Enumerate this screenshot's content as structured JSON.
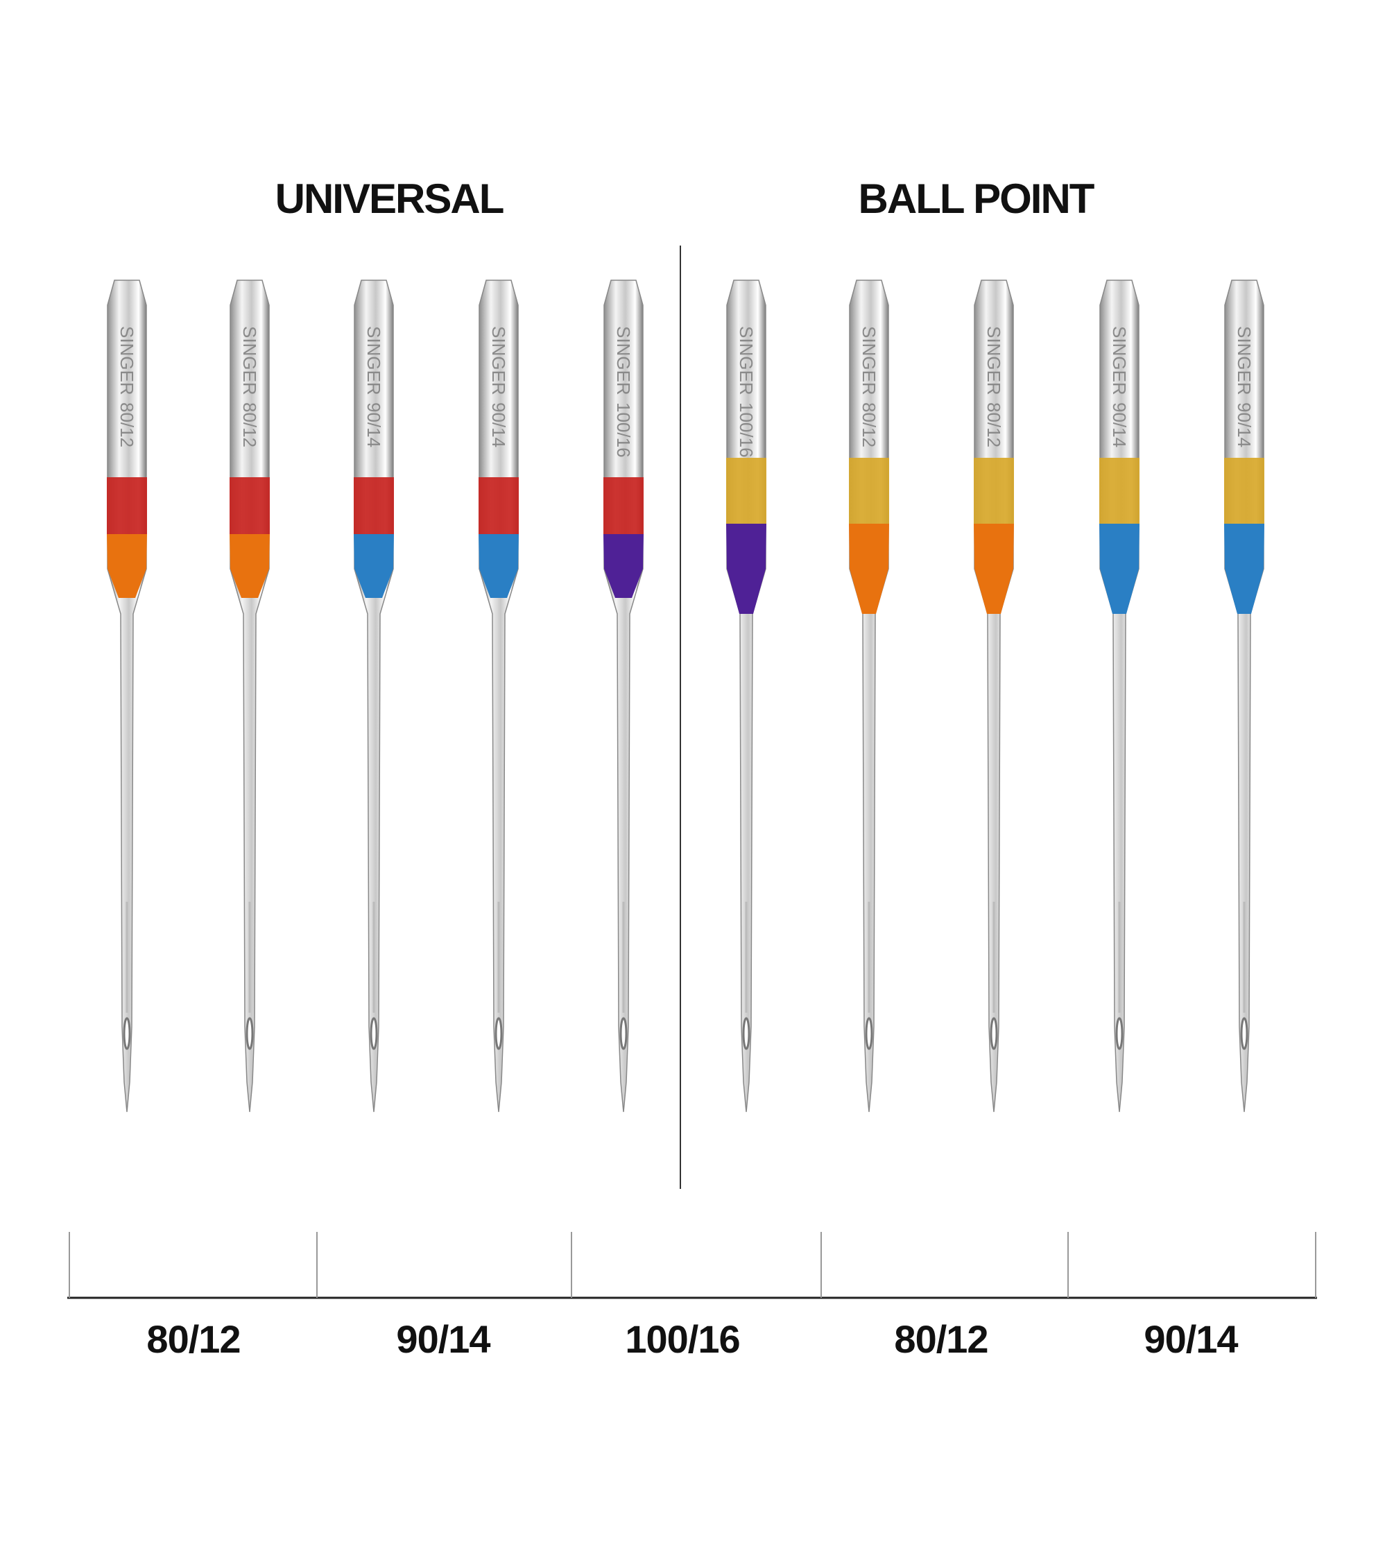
{
  "headings": [
    "UNIVERSAL",
    "BALL POINT"
  ],
  "needles": [
    {
      "brand": "SINGER",
      "size": "80/12"
    },
    {
      "brand": "SINGER",
      "size": "80/12"
    },
    {
      "brand": "SINGER",
      "size": "90/14"
    },
    {
      "brand": "SINGER",
      "size": "90/14"
    },
    {
      "brand": "SINGER",
      "size": "100/16"
    },
    {
      "brand": "SINGER",
      "size": "100/16"
    },
    {
      "brand": "SINGER",
      "size": "80/12"
    },
    {
      "brand": "SINGER",
      "size": "80/12"
    },
    {
      "brand": "SINGER",
      "size": "90/14"
    },
    {
      "brand": "SINGER",
      "size": "90/14"
    }
  ],
  "sizes": [
    "80/12",
    "90/14",
    "100/16",
    "80/12",
    "90/14"
  ]
}
